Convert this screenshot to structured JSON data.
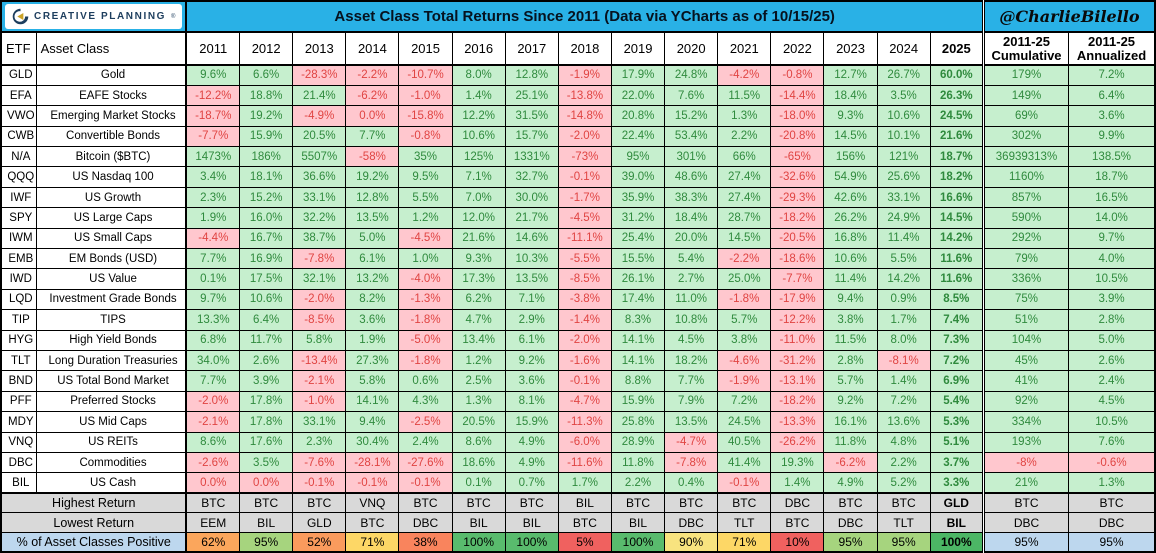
{
  "header": {
    "logo_text": "CREATIVE PLANNING",
    "logo_reg": "®",
    "title": "Asset Class Total Returns Since 2011 (Data via YCharts as of 10/15/25)",
    "handle": "@CharlieBilello"
  },
  "colors": {
    "cyan": "#29B1E6",
    "pos_bg": "#C6EFCE",
    "pos_tx": "#2F8A3D",
    "neg_bg": "#FFC7CE",
    "neg_tx": "#E04442",
    "year_bg": "#F2F2F2",
    "y25_bg": "#BFBFBF",
    "gray": "#D9D9D9",
    "blue": "#BDD7EE",
    "navy": "#1D3E5E",
    "gold": "#C9A227"
  },
  "chart_data": {
    "type": "table",
    "title": "Asset Class Total Returns Since 2011 (Data via YCharts as of 10/15/25)",
    "columns": {
      "etf": "ETF",
      "asset_class": "Asset Class",
      "cumulative_line1": "2011-25",
      "cumulative_line2": "Cumulative",
      "annualized_line1": "2011-25",
      "annualized_line2": "Annualized"
    },
    "years": [
      "2011",
      "2012",
      "2013",
      "2014",
      "2015",
      "2016",
      "2017",
      "2018",
      "2019",
      "2020",
      "2021",
      "2022",
      "2023",
      "2024",
      "2025"
    ],
    "rows": [
      {
        "etf": "GLD",
        "name": "Gold",
        "values": [
          "9.6%",
          "6.6%",
          "-28.3%",
          "-2.2%",
          "-10.7%",
          "8.0%",
          "12.8%",
          "-1.9%",
          "17.9%",
          "24.8%",
          "-4.2%",
          "-0.8%",
          "12.7%",
          "26.7%",
          "60.0%"
        ],
        "cumulative": "179%",
        "annualized": "7.2%"
      },
      {
        "etf": "EFA",
        "name": "EAFE Stocks",
        "values": [
          "-12.2%",
          "18.8%",
          "21.4%",
          "-6.2%",
          "-1.0%",
          "1.4%",
          "25.1%",
          "-13.8%",
          "22.0%",
          "7.6%",
          "11.5%",
          "-14.4%",
          "18.4%",
          "3.5%",
          "26.3%"
        ],
        "cumulative": "149%",
        "annualized": "6.4%"
      },
      {
        "etf": "VWO",
        "name": "Emerging Market Stocks",
        "values": [
          "-18.7%",
          "19.2%",
          "-4.9%",
          "0.0%",
          "-15.8%",
          "12.2%",
          "31.5%",
          "-14.8%",
          "20.8%",
          "15.2%",
          "1.3%",
          "-18.0%",
          "9.3%",
          "10.6%",
          "24.5%"
        ],
        "cumulative": "69%",
        "annualized": "3.6%"
      },
      {
        "etf": "CWB",
        "name": "Convertible Bonds",
        "values": [
          "-7.7%",
          "15.9%",
          "20.5%",
          "7.7%",
          "-0.8%",
          "10.6%",
          "15.7%",
          "-2.0%",
          "22.4%",
          "53.4%",
          "2.2%",
          "-20.8%",
          "14.5%",
          "10.1%",
          "21.6%"
        ],
        "cumulative": "302%",
        "annualized": "9.9%"
      },
      {
        "etf": "N/A",
        "name": "Bitcoin ($BTC)",
        "values": [
          "1473%",
          "186%",
          "5507%",
          "-58%",
          "35%",
          "125%",
          "1331%",
          "-73%",
          "95%",
          "301%",
          "66%",
          "-65%",
          "156%",
          "121%",
          "18.7%"
        ],
        "cumulative": "36939313%",
        "annualized": "138.5%"
      },
      {
        "etf": "QQQ",
        "name": "US Nasdaq 100",
        "values": [
          "3.4%",
          "18.1%",
          "36.6%",
          "19.2%",
          "9.5%",
          "7.1%",
          "32.7%",
          "-0.1%",
          "39.0%",
          "48.6%",
          "27.4%",
          "-32.6%",
          "54.9%",
          "25.6%",
          "18.2%"
        ],
        "cumulative": "1160%",
        "annualized": "18.7%"
      },
      {
        "etf": "IWF",
        "name": "US Growth",
        "values": [
          "2.3%",
          "15.2%",
          "33.1%",
          "12.8%",
          "5.5%",
          "7.0%",
          "30.0%",
          "-1.7%",
          "35.9%",
          "38.3%",
          "27.4%",
          "-29.3%",
          "42.6%",
          "33.1%",
          "16.6%"
        ],
        "cumulative": "857%",
        "annualized": "16.5%"
      },
      {
        "etf": "SPY",
        "name": "US Large Caps",
        "values": [
          "1.9%",
          "16.0%",
          "32.2%",
          "13.5%",
          "1.2%",
          "12.0%",
          "21.7%",
          "-4.5%",
          "31.2%",
          "18.4%",
          "28.7%",
          "-18.2%",
          "26.2%",
          "24.9%",
          "14.5%"
        ],
        "cumulative": "590%",
        "annualized": "14.0%"
      },
      {
        "etf": "IWM",
        "name": "US Small Caps",
        "values": [
          "-4.4%",
          "16.7%",
          "38.7%",
          "5.0%",
          "-4.5%",
          "21.6%",
          "14.6%",
          "-11.1%",
          "25.4%",
          "20.0%",
          "14.5%",
          "-20.5%",
          "16.8%",
          "11.4%",
          "14.2%"
        ],
        "cumulative": "292%",
        "annualized": "9.7%"
      },
      {
        "etf": "EMB",
        "name": "EM Bonds (USD)",
        "values": [
          "7.7%",
          "16.9%",
          "-7.8%",
          "6.1%",
          "1.0%",
          "9.3%",
          "10.3%",
          "-5.5%",
          "15.5%",
          "5.4%",
          "-2.2%",
          "-18.6%",
          "10.6%",
          "5.5%",
          "11.6%"
        ],
        "cumulative": "79%",
        "annualized": "4.0%"
      },
      {
        "etf": "IWD",
        "name": "US Value",
        "values": [
          "0.1%",
          "17.5%",
          "32.1%",
          "13.2%",
          "-4.0%",
          "17.3%",
          "13.5%",
          "-8.5%",
          "26.1%",
          "2.7%",
          "25.0%",
          "-7.7%",
          "11.4%",
          "14.2%",
          "11.6%"
        ],
        "cumulative": "336%",
        "annualized": "10.5%"
      },
      {
        "etf": "LQD",
        "name": "Investment Grade Bonds",
        "values": [
          "9.7%",
          "10.6%",
          "-2.0%",
          "8.2%",
          "-1.3%",
          "6.2%",
          "7.1%",
          "-3.8%",
          "17.4%",
          "11.0%",
          "-1.8%",
          "-17.9%",
          "9.4%",
          "0.9%",
          "8.5%"
        ],
        "cumulative": "75%",
        "annualized": "3.9%"
      },
      {
        "etf": "TIP",
        "name": "TIPS",
        "values": [
          "13.3%",
          "6.4%",
          "-8.5%",
          "3.6%",
          "-1.8%",
          "4.7%",
          "2.9%",
          "-1.4%",
          "8.3%",
          "10.8%",
          "5.7%",
          "-12.2%",
          "3.8%",
          "1.7%",
          "7.4%"
        ],
        "cumulative": "51%",
        "annualized": "2.8%"
      },
      {
        "etf": "HYG",
        "name": "High Yield Bonds",
        "values": [
          "6.8%",
          "11.7%",
          "5.8%",
          "1.9%",
          "-5.0%",
          "13.4%",
          "6.1%",
          "-2.0%",
          "14.1%",
          "4.5%",
          "3.8%",
          "-11.0%",
          "11.5%",
          "8.0%",
          "7.3%"
        ],
        "cumulative": "104%",
        "annualized": "5.0%"
      },
      {
        "etf": "TLT",
        "name": "Long Duration Treasuries",
        "values": [
          "34.0%",
          "2.6%",
          "-13.4%",
          "27.3%",
          "-1.8%",
          "1.2%",
          "9.2%",
          "-1.6%",
          "14.1%",
          "18.2%",
          "-4.6%",
          "-31.2%",
          "2.8%",
          "-8.1%",
          "7.2%"
        ],
        "cumulative": "45%",
        "annualized": "2.6%"
      },
      {
        "etf": "BND",
        "name": "US Total Bond Market",
        "values": [
          "7.7%",
          "3.9%",
          "-2.1%",
          "5.8%",
          "0.6%",
          "2.5%",
          "3.6%",
          "-0.1%",
          "8.8%",
          "7.7%",
          "-1.9%",
          "-13.1%",
          "5.7%",
          "1.4%",
          "6.9%"
        ],
        "cumulative": "41%",
        "annualized": "2.4%"
      },
      {
        "etf": "PFF",
        "name": "Preferred Stocks",
        "values": [
          "-2.0%",
          "17.8%",
          "-1.0%",
          "14.1%",
          "4.3%",
          "1.3%",
          "8.1%",
          "-4.7%",
          "15.9%",
          "7.9%",
          "7.2%",
          "-18.2%",
          "9.2%",
          "7.2%",
          "5.4%"
        ],
        "cumulative": "92%",
        "annualized": "4.5%"
      },
      {
        "etf": "MDY",
        "name": "US Mid Caps",
        "values": [
          "-2.1%",
          "17.8%",
          "33.1%",
          "9.4%",
          "-2.5%",
          "20.5%",
          "15.9%",
          "-11.3%",
          "25.8%",
          "13.5%",
          "24.5%",
          "-13.3%",
          "16.1%",
          "13.6%",
          "5.3%"
        ],
        "cumulative": "334%",
        "annualized": "10.5%"
      },
      {
        "etf": "VNQ",
        "name": "US REITs",
        "values": [
          "8.6%",
          "17.6%",
          "2.3%",
          "30.4%",
          "2.4%",
          "8.6%",
          "4.9%",
          "-6.0%",
          "28.9%",
          "-4.7%",
          "40.5%",
          "-26.2%",
          "11.8%",
          "4.8%",
          "5.1%"
        ],
        "cumulative": "193%",
        "annualized": "7.6%"
      },
      {
        "etf": "DBC",
        "name": "Commodities",
        "values": [
          "-2.6%",
          "3.5%",
          "-7.6%",
          "-28.1%",
          "-27.6%",
          "18.6%",
          "4.9%",
          "-11.6%",
          "11.8%",
          "-7.8%",
          "41.4%",
          "19.3%",
          "-6.2%",
          "2.2%",
          "3.7%"
        ],
        "cumulative": "-8%",
        "annualized": "-0.6%"
      },
      {
        "etf": "BIL",
        "name": "US Cash",
        "values": [
          "0.0%",
          "0.0%",
          "-0.1%",
          "-0.1%",
          "-0.1%",
          "0.1%",
          "0.7%",
          "1.7%",
          "2.2%",
          "0.4%",
          "-0.1%",
          "1.4%",
          "4.9%",
          "5.2%",
          "3.3%"
        ],
        "cumulative": "21%",
        "annualized": "1.3%"
      }
    ],
    "footer": {
      "highest_label": "Highest Return",
      "highest": [
        "BTC",
        "BTC",
        "BTC",
        "VNQ",
        "BTC",
        "BTC",
        "BTC",
        "BIL",
        "BTC",
        "BTC",
        "BTC",
        "DBC",
        "BTC",
        "BTC",
        "GLD"
      ],
      "highest_cumulative": "BTC",
      "highest_annualized": "BTC",
      "lowest_label": "Lowest Return",
      "lowest": [
        "EEM",
        "BIL",
        "GLD",
        "BTC",
        "DBC",
        "BIL",
        "BIL",
        "BTC",
        "BIL",
        "DBC",
        "TLT",
        "BTC",
        "DBC",
        "TLT",
        "BIL"
      ],
      "lowest_cumulative": "DBC",
      "lowest_annualized": "DBC",
      "positive_label": "% of Asset Classes Positive",
      "positive": [
        "62%",
        "95%",
        "52%",
        "71%",
        "38%",
        "100%",
        "100%",
        "5%",
        "100%",
        "90%",
        "71%",
        "10%",
        "95%",
        "95%",
        "100%"
      ],
      "positive_colors": [
        "#FBA65C",
        "#A6D47E",
        "#FA9B5D",
        "#FDD766",
        "#F9845D",
        "#59BB6D",
        "#59BB6D",
        "#F0615F",
        "#59BB6D",
        "#F8E37F",
        "#FDD766",
        "#F0615F",
        "#A6D47E",
        "#A6D47E",
        "#4CB665"
      ],
      "positive_cumulative": "95%",
      "positive_annualized": "95%"
    }
  }
}
